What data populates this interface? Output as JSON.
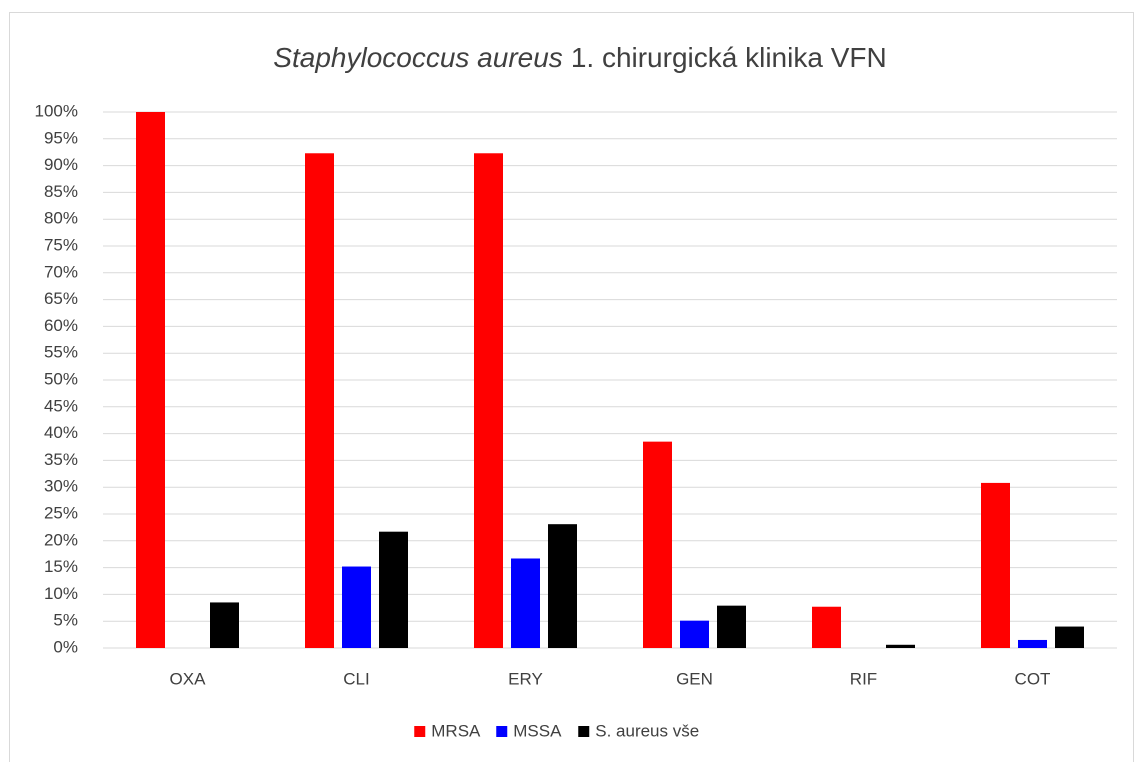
{
  "chart_data": {
    "type": "bar",
    "title_parts": [
      "Staphylococcus aureus",
      "1. chirurgická klinika VFN"
    ],
    "categories": [
      "OXA",
      "CLI",
      "ERY",
      "GEN",
      "RIF",
      "COT"
    ],
    "series": [
      {
        "name": "MRSA",
        "color": "#ff0000",
        "values": [
          100,
          92.3,
          92.3,
          38.5,
          7.7,
          30.8
        ]
      },
      {
        "name": "MSSA",
        "color": "#0000ff",
        "values": [
          0,
          15.2,
          16.7,
          5.1,
          0,
          1.5
        ]
      },
      {
        "name": "S. aureus vše",
        "color": "#000000",
        "values": [
          8.5,
          21.7,
          23.1,
          7.9,
          0.6,
          4.0
        ]
      }
    ],
    "ylim": [
      0,
      100
    ],
    "yticks": [
      {
        "value": 0,
        "label": "0%"
      },
      {
        "value": 5,
        "label": "5%"
      },
      {
        "value": 10,
        "label": "10%"
      },
      {
        "value": 15,
        "label": "15%"
      },
      {
        "value": 20,
        "label": "20%"
      },
      {
        "value": 25,
        "label": "25%"
      },
      {
        "value": 30,
        "label": "30%"
      },
      {
        "value": 35,
        "label": "35%"
      },
      {
        "value": 40,
        "label": "40%"
      },
      {
        "value": 45,
        "label": "45%"
      },
      {
        "value": 50,
        "label": "50%"
      },
      {
        "value": 55,
        "label": "55%"
      },
      {
        "value": 60,
        "label": "60%"
      },
      {
        "value": 65,
        "label": "65%"
      },
      {
        "value": 70,
        "label": "70%"
      },
      {
        "value": 75,
        "label": "75%"
      },
      {
        "value": 80,
        "label": "80%"
      },
      {
        "value": 85,
        "label": "85%"
      },
      {
        "value": 90,
        "label": "90%"
      },
      {
        "value": 95,
        "label": "95%"
      },
      {
        "value": 100,
        "label": "100%"
      }
    ],
    "grid": true,
    "legend": "bottom"
  }
}
